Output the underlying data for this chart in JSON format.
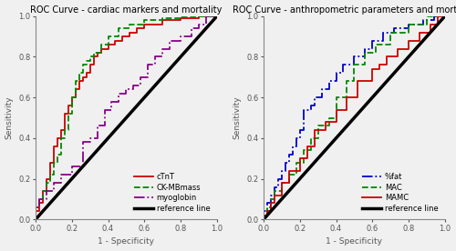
{
  "left_title": "ROC Curve - cardiac markers and mortality",
  "right_title": "ROC Curve - anthropometric parameters and mortality",
  "xlabel": "1 - Specificity",
  "ylabel": "Sensitivity",
  "xlim": [
    0.0,
    1.0
  ],
  "ylim": [
    0.0,
    1.0
  ],
  "xticks": [
    0.0,
    0.2,
    0.4,
    0.6,
    0.8,
    1.0
  ],
  "yticks": [
    0.0,
    0.2,
    0.4,
    0.6,
    0.8,
    1.0
  ],
  "cTnT_x": [
    0.0,
    0.0,
    0.02,
    0.02,
    0.04,
    0.04,
    0.06,
    0.06,
    0.08,
    0.08,
    0.1,
    0.1,
    0.12,
    0.12,
    0.14,
    0.14,
    0.16,
    0.16,
    0.18,
    0.18,
    0.2,
    0.2,
    0.22,
    0.22,
    0.24,
    0.24,
    0.26,
    0.26,
    0.28,
    0.28,
    0.3,
    0.3,
    0.32,
    0.32,
    0.34,
    0.34,
    0.36,
    0.36,
    0.4,
    0.4,
    0.44,
    0.44,
    0.48,
    0.48,
    0.52,
    0.52,
    0.56,
    0.56,
    0.6,
    0.6,
    0.7,
    0.7,
    0.8,
    0.8,
    0.9,
    0.9,
    1.0
  ],
  "cTnT_y": [
    0.0,
    0.04,
    0.04,
    0.08,
    0.08,
    0.14,
    0.14,
    0.2,
    0.2,
    0.28,
    0.28,
    0.36,
    0.36,
    0.4,
    0.4,
    0.44,
    0.44,
    0.52,
    0.52,
    0.56,
    0.56,
    0.6,
    0.6,
    0.64,
    0.64,
    0.68,
    0.68,
    0.7,
    0.7,
    0.72,
    0.72,
    0.76,
    0.76,
    0.8,
    0.8,
    0.82,
    0.82,
    0.84,
    0.84,
    0.86,
    0.86,
    0.88,
    0.88,
    0.9,
    0.9,
    0.92,
    0.92,
    0.94,
    0.94,
    0.96,
    0.96,
    0.98,
    0.98,
    0.99,
    0.99,
    1.0,
    1.0
  ],
  "cTnT_color": "#cc0000",
  "cTnT_style": "solid",
  "cTnT_lw": 1.3,
  "CKMBmass_x": [
    0.0,
    0.0,
    0.02,
    0.02,
    0.04,
    0.04,
    0.06,
    0.06,
    0.08,
    0.08,
    0.1,
    0.1,
    0.12,
    0.12,
    0.14,
    0.14,
    0.16,
    0.16,
    0.18,
    0.18,
    0.2,
    0.2,
    0.22,
    0.22,
    0.24,
    0.24,
    0.26,
    0.26,
    0.28,
    0.28,
    0.3,
    0.3,
    0.32,
    0.32,
    0.36,
    0.36,
    0.4,
    0.4,
    0.46,
    0.46,
    0.52,
    0.52,
    0.6,
    0.6,
    0.7,
    0.7,
    0.8,
    0.8,
    0.9,
    0.9,
    1.0
  ],
  "CKMBmass_y": [
    0.0,
    0.06,
    0.06,
    0.1,
    0.1,
    0.14,
    0.14,
    0.18,
    0.18,
    0.22,
    0.22,
    0.28,
    0.28,
    0.32,
    0.32,
    0.4,
    0.4,
    0.44,
    0.44,
    0.52,
    0.52,
    0.6,
    0.6,
    0.68,
    0.68,
    0.72,
    0.72,
    0.76,
    0.76,
    0.78,
    0.78,
    0.8,
    0.8,
    0.82,
    0.82,
    0.86,
    0.86,
    0.9,
    0.9,
    0.94,
    0.94,
    0.96,
    0.96,
    0.98,
    0.98,
    0.99,
    0.99,
    1.0,
    1.0,
    1.0,
    1.0
  ],
  "CKMBmass_color": "#008800",
  "CKMBmass_style": "dashed",
  "CKMBmass_lw": 1.3,
  "myoglobin_x": [
    0.0,
    0.0,
    0.02,
    0.02,
    0.06,
    0.06,
    0.1,
    0.1,
    0.14,
    0.14,
    0.2,
    0.2,
    0.26,
    0.26,
    0.3,
    0.3,
    0.34,
    0.34,
    0.38,
    0.38,
    0.42,
    0.42,
    0.46,
    0.46,
    0.5,
    0.5,
    0.54,
    0.54,
    0.58,
    0.58,
    0.62,
    0.62,
    0.66,
    0.66,
    0.7,
    0.7,
    0.74,
    0.74,
    0.8,
    0.8,
    0.86,
    0.86,
    0.9,
    0.9,
    0.94,
    0.94,
    1.0
  ],
  "myoglobin_y": [
    0.0,
    0.06,
    0.06,
    0.1,
    0.1,
    0.14,
    0.14,
    0.18,
    0.18,
    0.22,
    0.22,
    0.26,
    0.26,
    0.38,
    0.38,
    0.4,
    0.4,
    0.46,
    0.46,
    0.54,
    0.54,
    0.58,
    0.58,
    0.62,
    0.62,
    0.64,
    0.64,
    0.66,
    0.66,
    0.7,
    0.7,
    0.76,
    0.76,
    0.8,
    0.8,
    0.84,
    0.84,
    0.88,
    0.88,
    0.9,
    0.9,
    0.94,
    0.94,
    0.96,
    0.96,
    1.0,
    1.0
  ],
  "myoglobin_color": "#880088",
  "myoglobin_style": "dashdot",
  "myoglobin_lw": 1.3,
  "fat_x": [
    0.0,
    0.0,
    0.02,
    0.02,
    0.04,
    0.04,
    0.06,
    0.06,
    0.08,
    0.08,
    0.1,
    0.1,
    0.12,
    0.12,
    0.14,
    0.14,
    0.16,
    0.16,
    0.18,
    0.18,
    0.2,
    0.2,
    0.22,
    0.22,
    0.26,
    0.26,
    0.28,
    0.28,
    0.32,
    0.32,
    0.36,
    0.36,
    0.4,
    0.4,
    0.44,
    0.44,
    0.5,
    0.5,
    0.56,
    0.56,
    0.6,
    0.6,
    0.66,
    0.66,
    0.72,
    0.72,
    0.8,
    0.8,
    0.88,
    0.88,
    0.94,
    0.94,
    1.0
  ],
  "fat_y": [
    0.0,
    0.04,
    0.04,
    0.08,
    0.08,
    0.12,
    0.12,
    0.16,
    0.16,
    0.2,
    0.2,
    0.24,
    0.24,
    0.28,
    0.28,
    0.32,
    0.32,
    0.36,
    0.36,
    0.4,
    0.4,
    0.44,
    0.44,
    0.54,
    0.54,
    0.56,
    0.56,
    0.6,
    0.6,
    0.64,
    0.64,
    0.68,
    0.68,
    0.72,
    0.72,
    0.76,
    0.76,
    0.8,
    0.8,
    0.84,
    0.84,
    0.88,
    0.88,
    0.92,
    0.92,
    0.94,
    0.94,
    0.96,
    0.96,
    0.98,
    0.98,
    1.0,
    1.0
  ],
  "fat_color": "#0000cc",
  "fat_style": "dashdot",
  "fat_lw": 1.3,
  "MAC_x": [
    0.0,
    0.0,
    0.02,
    0.02,
    0.04,
    0.04,
    0.06,
    0.06,
    0.1,
    0.1,
    0.14,
    0.14,
    0.18,
    0.18,
    0.22,
    0.22,
    0.26,
    0.26,
    0.3,
    0.3,
    0.36,
    0.36,
    0.4,
    0.4,
    0.46,
    0.46,
    0.5,
    0.5,
    0.56,
    0.56,
    0.62,
    0.62,
    0.7,
    0.7,
    0.8,
    0.8,
    0.9,
    0.9,
    1.0
  ],
  "MAC_y": [
    0.0,
    0.02,
    0.02,
    0.06,
    0.06,
    0.1,
    0.1,
    0.14,
    0.14,
    0.18,
    0.18,
    0.22,
    0.22,
    0.28,
    0.28,
    0.34,
    0.34,
    0.4,
    0.4,
    0.46,
    0.46,
    0.5,
    0.5,
    0.6,
    0.6,
    0.68,
    0.68,
    0.76,
    0.76,
    0.82,
    0.82,
    0.86,
    0.86,
    0.92,
    0.92,
    0.96,
    0.96,
    1.0,
    1.0
  ],
  "MAC_color": "#008800",
  "MAC_style": "dashed",
  "MAC_lw": 1.3,
  "MAMC_x": [
    0.0,
    0.0,
    0.02,
    0.02,
    0.04,
    0.04,
    0.06,
    0.06,
    0.1,
    0.1,
    0.14,
    0.14,
    0.2,
    0.2,
    0.24,
    0.24,
    0.28,
    0.28,
    0.34,
    0.34,
    0.4,
    0.4,
    0.46,
    0.46,
    0.52,
    0.52,
    0.6,
    0.6,
    0.64,
    0.64,
    0.68,
    0.68,
    0.74,
    0.74,
    0.8,
    0.8,
    0.86,
    0.86,
    0.92,
    0.92,
    0.96,
    0.96,
    1.0
  ],
  "MAMC_y": [
    0.0,
    0.02,
    0.02,
    0.04,
    0.04,
    0.08,
    0.08,
    0.12,
    0.12,
    0.18,
    0.18,
    0.24,
    0.24,
    0.3,
    0.3,
    0.36,
    0.36,
    0.44,
    0.44,
    0.48,
    0.48,
    0.54,
    0.54,
    0.6,
    0.6,
    0.68,
    0.68,
    0.74,
    0.74,
    0.76,
    0.76,
    0.8,
    0.8,
    0.84,
    0.84,
    0.88,
    0.88,
    0.92,
    0.92,
    0.96,
    0.96,
    1.0,
    1.0
  ],
  "MAMC_color": "#cc0000",
  "MAMC_style": "solid",
  "MAMC_lw": 1.3,
  "ref_color": "#000000",
  "ref_lw": 2.5,
  "bg_color": "#f0f0f0",
  "title_fontsize": 7.0,
  "label_fontsize": 6.5,
  "tick_fontsize": 6.0,
  "legend_fontsize": 6.0
}
